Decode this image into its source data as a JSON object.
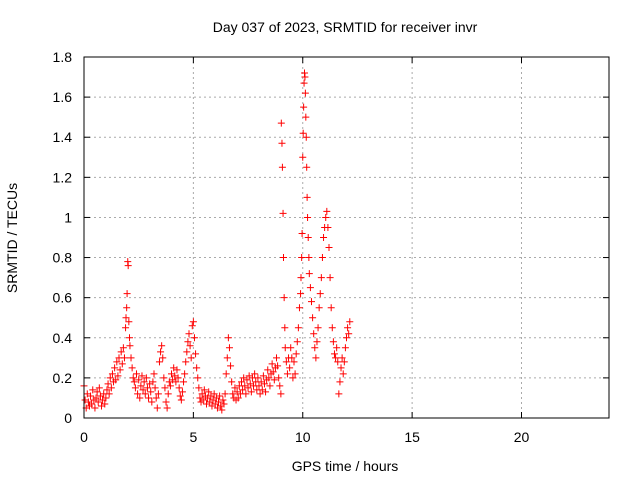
{
  "chart_data": {
    "type": "scatter",
    "title": "Day 037 of 2023, SRMTID for receiver invr",
    "xlabel": "GPS time / hours",
    "ylabel": "SRMTID / TECUs",
    "xlim": [
      0,
      24
    ],
    "ylim": [
      0,
      1.8
    ],
    "xticks": [
      0,
      5,
      10,
      15,
      20
    ],
    "yticks": [
      0,
      0.2,
      0.4,
      0.6,
      0.8,
      1,
      1.2,
      1.4,
      1.6,
      1.8
    ],
    "xtick_labels": [
      "0",
      "5",
      "10",
      "15",
      "20"
    ],
    "ytick_labels": [
      "0",
      "0.2",
      "0.4",
      "0.6",
      "0.8",
      "1",
      "1.2",
      "1.4",
      "1.6",
      "1.8"
    ],
    "grid": true,
    "marker": "+",
    "color": "#ff0000",
    "series": [
      {
        "name": "SRMTID",
        "points": [
          [
            0.0,
            0.16
          ],
          [
            0.05,
            0.09
          ],
          [
            0.1,
            0.05
          ],
          [
            0.15,
            0.12
          ],
          [
            0.2,
            0.08
          ],
          [
            0.25,
            0.06
          ],
          [
            0.3,
            0.11
          ],
          [
            0.35,
            0.07
          ],
          [
            0.4,
            0.14
          ],
          [
            0.45,
            0.09
          ],
          [
            0.5,
            0.05
          ],
          [
            0.55,
            0.1
          ],
          [
            0.6,
            0.13
          ],
          [
            0.65,
            0.08
          ],
          [
            0.7,
            0.15
          ],
          [
            0.75,
            0.11
          ],
          [
            0.8,
            0.06
          ],
          [
            0.85,
            0.09
          ],
          [
            0.9,
            0.12
          ],
          [
            0.95,
            0.07
          ],
          [
            1.0,
            0.1
          ],
          [
            1.05,
            0.14
          ],
          [
            1.1,
            0.17
          ],
          [
            1.15,
            0.12
          ],
          [
            1.2,
            0.2
          ],
          [
            1.25,
            0.15
          ],
          [
            1.3,
            0.22
          ],
          [
            1.35,
            0.18
          ],
          [
            1.4,
            0.25
          ],
          [
            1.45,
            0.19
          ],
          [
            1.5,
            0.28
          ],
          [
            1.55,
            0.21
          ],
          [
            1.6,
            0.3
          ],
          [
            1.65,
            0.24
          ],
          [
            1.7,
            0.33
          ],
          [
            1.75,
            0.27
          ],
          [
            1.8,
            0.35
          ],
          [
            1.85,
            0.3
          ],
          [
            1.9,
            0.45
          ],
          [
            1.92,
            0.5
          ],
          [
            1.95,
            0.55
          ],
          [
            1.97,
            0.62
          ],
          [
            2.0,
            0.78
          ],
          [
            2.02,
            0.76
          ],
          [
            2.05,
            0.48
          ],
          [
            2.08,
            0.4
          ],
          [
            2.1,
            0.36
          ],
          [
            2.15,
            0.3
          ],
          [
            2.2,
            0.25
          ],
          [
            2.25,
            0.2
          ],
          [
            2.3,
            0.18
          ],
          [
            2.35,
            0.15
          ],
          [
            2.4,
            0.22
          ],
          [
            2.45,
            0.12
          ],
          [
            2.5,
            0.19
          ],
          [
            2.55,
            0.1
          ],
          [
            2.6,
            0.16
          ],
          [
            2.65,
            0.21
          ],
          [
            2.7,
            0.14
          ],
          [
            2.75,
            0.18
          ],
          [
            2.8,
            0.12
          ],
          [
            2.85,
            0.2
          ],
          [
            2.9,
            0.15
          ],
          [
            2.95,
            0.1
          ],
          [
            3.0,
            0.17
          ],
          [
            3.05,
            0.13
          ],
          [
            3.1,
            0.08
          ],
          [
            3.15,
            0.18
          ],
          [
            3.2,
            0.22
          ],
          [
            3.25,
            0.15
          ],
          [
            3.3,
            0.1
          ],
          [
            3.35,
            0.05
          ],
          [
            3.4,
            0.12
          ],
          [
            3.45,
            0.28
          ],
          [
            3.5,
            0.33
          ],
          [
            3.55,
            0.36
          ],
          [
            3.6,
            0.3
          ],
          [
            3.65,
            0.2
          ],
          [
            3.7,
            0.15
          ],
          [
            3.75,
            0.08
          ],
          [
            3.8,
            0.05
          ],
          [
            3.85,
            0.12
          ],
          [
            3.9,
            0.18
          ],
          [
            3.95,
            0.16
          ],
          [
            4.0,
            0.22
          ],
          [
            4.05,
            0.19
          ],
          [
            4.1,
            0.25
          ],
          [
            4.15,
            0.21
          ],
          [
            4.2,
            0.18
          ],
          [
            4.25,
            0.24
          ],
          [
            4.3,
            0.2
          ],
          [
            4.35,
            0.15
          ],
          [
            4.4,
            0.11
          ],
          [
            4.45,
            0.09
          ],
          [
            4.5,
            0.13
          ],
          [
            4.55,
            0.18
          ],
          [
            4.6,
            0.22
          ],
          [
            4.65,
            0.28
          ],
          [
            4.7,
            0.33
          ],
          [
            4.75,
            0.38
          ],
          [
            4.8,
            0.42
          ],
          [
            4.85,
            0.36
          ],
          [
            4.9,
            0.3
          ],
          [
            4.95,
            0.46
          ],
          [
            5.0,
            0.48
          ],
          [
            5.05,
            0.4
          ],
          [
            5.1,
            0.32
          ],
          [
            5.15,
            0.25
          ],
          [
            5.2,
            0.2
          ],
          [
            5.25,
            0.15
          ],
          [
            5.3,
            0.1
          ],
          [
            5.35,
            0.08
          ],
          [
            5.4,
            0.12
          ],
          [
            5.45,
            0.09
          ],
          [
            5.5,
            0.14
          ],
          [
            5.55,
            0.11
          ],
          [
            5.6,
            0.07
          ],
          [
            5.65,
            0.1
          ],
          [
            5.7,
            0.13
          ],
          [
            5.75,
            0.08
          ],
          [
            5.8,
            0.11
          ],
          [
            5.85,
            0.06
          ],
          [
            5.9,
            0.09
          ],
          [
            5.95,
            0.12
          ],
          [
            6.0,
            0.07
          ],
          [
            6.05,
            0.1
          ],
          [
            6.1,
            0.05
          ],
          [
            6.15,
            0.08
          ],
          [
            6.2,
            0.11
          ],
          [
            6.25,
            0.06
          ],
          [
            6.3,
            0.04
          ],
          [
            6.35,
            0.09
          ],
          [
            6.4,
            0.07
          ],
          [
            6.45,
            0.12
          ],
          [
            6.5,
            0.22
          ],
          [
            6.55,
            0.3
          ],
          [
            6.6,
            0.4
          ],
          [
            6.65,
            0.35
          ],
          [
            6.7,
            0.26
          ],
          [
            6.75,
            0.18
          ],
          [
            6.8,
            0.12
          ],
          [
            6.85,
            0.1
          ],
          [
            6.9,
            0.15
          ],
          [
            6.95,
            0.09
          ],
          [
            7.0,
            0.13
          ],
          [
            7.05,
            0.1
          ],
          [
            7.1,
            0.16
          ],
          [
            7.15,
            0.12
          ],
          [
            7.2,
            0.18
          ],
          [
            7.25,
            0.14
          ],
          [
            7.3,
            0.2
          ],
          [
            7.35,
            0.16
          ],
          [
            7.4,
            0.12
          ],
          [
            7.45,
            0.19
          ],
          [
            7.5,
            0.15
          ],
          [
            7.55,
            0.21
          ],
          [
            7.6,
            0.17
          ],
          [
            7.65,
            0.13
          ],
          [
            7.7,
            0.2
          ],
          [
            7.75,
            0.16
          ],
          [
            7.8,
            0.22
          ],
          [
            7.85,
            0.18
          ],
          [
            7.9,
            0.14
          ],
          [
            7.95,
            0.2
          ],
          [
            8.0,
            0.16
          ],
          [
            8.05,
            0.12
          ],
          [
            8.1,
            0.18
          ],
          [
            8.15,
            0.14
          ],
          [
            8.2,
            0.21
          ],
          [
            8.25,
            0.17
          ],
          [
            8.3,
            0.13
          ],
          [
            8.35,
            0.19
          ],
          [
            8.4,
            0.24
          ],
          [
            8.45,
            0.2
          ],
          [
            8.5,
            0.16
          ],
          [
            8.55,
            0.22
          ],
          [
            8.6,
            0.27
          ],
          [
            8.65,
            0.23
          ],
          [
            8.7,
            0.19
          ],
          [
            8.75,
            0.25
          ],
          [
            8.8,
            0.3
          ],
          [
            8.85,
            0.26
          ],
          [
            8.9,
            0.2
          ],
          [
            8.95,
            0.16
          ],
          [
            9.0,
            0.12
          ],
          [
            9.02,
            1.47
          ],
          [
            9.05,
            1.37
          ],
          [
            9.07,
            1.25
          ],
          [
            9.1,
            1.02
          ],
          [
            9.12,
            0.8
          ],
          [
            9.15,
            0.6
          ],
          [
            9.18,
            0.45
          ],
          [
            9.2,
            0.35
          ],
          [
            9.25,
            0.28
          ],
          [
            9.3,
            0.22
          ],
          [
            9.35,
            0.3
          ],
          [
            9.4,
            0.25
          ],
          [
            9.45,
            0.35
          ],
          [
            9.5,
            0.3
          ],
          [
            9.55,
            0.2
          ],
          [
            9.6,
            0.28
          ],
          [
            9.65,
            0.22
          ],
          [
            9.7,
            0.32
          ],
          [
            9.75,
            0.38
          ],
          [
            9.8,
            0.45
          ],
          [
            9.85,
            0.55
          ],
          [
            9.9,
            0.62
          ],
          [
            9.92,
            0.7
          ],
          [
            9.95,
            0.8
          ],
          [
            9.97,
            0.92
          ],
          [
            10.0,
            1.3
          ],
          [
            10.02,
            1.42
          ],
          [
            10.04,
            1.55
          ],
          [
            10.06,
            1.67
          ],
          [
            10.08,
            1.72
          ],
          [
            10.1,
            1.7
          ],
          [
            10.12,
            1.62
          ],
          [
            10.14,
            1.5
          ],
          [
            10.16,
            1.4
          ],
          [
            10.18,
            1.25
          ],
          [
            10.2,
            1.1
          ],
          [
            10.22,
            1.0
          ],
          [
            10.25,
            0.9
          ],
          [
            10.28,
            0.8
          ],
          [
            10.3,
            0.72
          ],
          [
            10.35,
            0.65
          ],
          [
            10.4,
            0.58
          ],
          [
            10.45,
            0.5
          ],
          [
            10.5,
            0.42
          ],
          [
            10.55,
            0.35
          ],
          [
            10.6,
            0.3
          ],
          [
            10.65,
            0.38
          ],
          [
            10.7,
            0.45
          ],
          [
            10.75,
            0.55
          ],
          [
            10.8,
            0.62
          ],
          [
            10.85,
            0.7
          ],
          [
            10.9,
            0.8
          ],
          [
            10.95,
            0.9
          ],
          [
            11.0,
            0.95
          ],
          [
            11.05,
            1.0
          ],
          [
            11.1,
            1.03
          ],
          [
            11.15,
            0.95
          ],
          [
            11.2,
            0.85
          ],
          [
            11.25,
            0.7
          ],
          [
            11.3,
            0.55
          ],
          [
            11.35,
            0.45
          ],
          [
            11.4,
            0.38
          ],
          [
            11.45,
            0.32
          ],
          [
            11.5,
            0.3
          ],
          [
            11.55,
            0.35
          ],
          [
            11.6,
            0.28
          ],
          [
            11.65,
            0.12
          ],
          [
            11.7,
            0.18
          ],
          [
            11.75,
            0.25
          ],
          [
            11.8,
            0.3
          ],
          [
            11.85,
            0.22
          ],
          [
            11.9,
            0.28
          ],
          [
            11.95,
            0.35
          ],
          [
            12.0,
            0.4
          ],
          [
            12.05,
            0.45
          ],
          [
            12.1,
            0.42
          ],
          [
            12.15,
            0.48
          ]
        ]
      }
    ]
  }
}
